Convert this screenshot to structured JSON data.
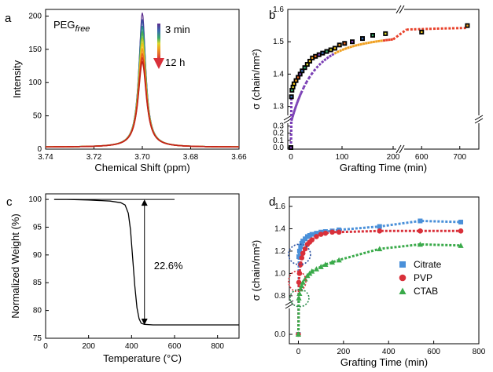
{
  "chart_data": [
    {
      "panel": "a",
      "type": "line",
      "xlabel": "Chemical Shift (ppm)",
      "ylabel": "Intensity",
      "xlim": [
        3.74,
        3.66
      ],
      "ylim": [
        0,
        210
      ],
      "x_ticks": [
        "3.74",
        "3.72",
        "3.70",
        "3.68",
        "3.66"
      ],
      "x_tick_values": [
        3.74,
        3.72,
        3.7,
        3.68,
        3.66
      ],
      "y_ticks": [
        "0",
        "50",
        "100",
        "150",
        "200"
      ],
      "y_tick_values": [
        0,
        50,
        100,
        150,
        200
      ],
      "annotation": {
        "label": "PEG",
        "subscript": "free"
      },
      "arrow_labels": {
        "start": "3 min",
        "end": "12 h"
      },
      "peak_center": 3.7,
      "baseline": 3,
      "series_peaks": [
        205,
        195,
        185,
        175,
        166,
        158,
        150,
        143,
        137,
        131
      ],
      "series_colors": [
        "#5b2d8e",
        "#3a4fa0",
        "#2a8a8a",
        "#4caf50",
        "#b9c92a",
        "#f0c419",
        "#f39a1f",
        "#e8641b",
        "#d93a1a",
        "#c0221a"
      ],
      "grid": false
    },
    {
      "panel": "b",
      "type": "scatter",
      "xlabel": "Grafting Time (min)",
      "ylabel": "σ (chain/nm²)",
      "broken_axes": true,
      "x_ticks_left": [
        "0",
        "100",
        "200"
      ],
      "x_ticks_right": [
        "600",
        "700"
      ],
      "y_ticks_upper": [
        "1.3",
        "1.4",
        "1.5",
        "1.6"
      ],
      "y_ticks_lower": [
        "0.0",
        "0.1",
        "0.2",
        "0.3"
      ],
      "points": [
        {
          "x": 0,
          "y": 0.0
        },
        {
          "x": 1,
          "y": 1.33
        },
        {
          "x": 2,
          "y": 1.35
        },
        {
          "x": 4,
          "y": 1.36
        },
        {
          "x": 6,
          "y": 1.37
        },
        {
          "x": 10,
          "y": 1.38
        },
        {
          "x": 14,
          "y": 1.39
        },
        {
          "x": 18,
          "y": 1.4
        },
        {
          "x": 22,
          "y": 1.41
        },
        {
          "x": 27,
          "y": 1.42
        },
        {
          "x": 32,
          "y": 1.43
        },
        {
          "x": 37,
          "y": 1.44
        },
        {
          "x": 42,
          "y": 1.45
        },
        {
          "x": 48,
          "y": 1.455
        },
        {
          "x": 55,
          "y": 1.46
        },
        {
          "x": 62,
          "y": 1.465
        },
        {
          "x": 70,
          "y": 1.47
        },
        {
          "x": 78,
          "y": 1.475
        },
        {
          "x": 86,
          "y": 1.48
        },
        {
          "x": 95,
          "y": 1.49
        },
        {
          "x": 105,
          "y": 1.495
        },
        {
          "x": 120,
          "y": 1.5
        },
        {
          "x": 140,
          "y": 1.51
        },
        {
          "x": 160,
          "y": 1.52
        },
        {
          "x": 185,
          "y": 1.525
        },
        {
          "x": 600,
          "y": 1.53
        },
        {
          "x": 720,
          "y": 1.55
        }
      ],
      "fit_color_start": "#7a3fb5",
      "fit_color_end": "#e8412a",
      "marker_color": "#000000"
    },
    {
      "panel": "c",
      "type": "line",
      "xlabel": "Temperature (°C)",
      "ylabel": "Normalized Weight (%)",
      "xlim": [
        0,
        900
      ],
      "ylim": [
        75,
        101
      ],
      "x_ticks": [
        "0",
        "200",
        "400",
        "600",
        "800"
      ],
      "x_tick_values": [
        0,
        200,
        400,
        600,
        800
      ],
      "y_ticks": [
        "75",
        "80",
        "85",
        "90",
        "95",
        "100"
      ],
      "y_tick_values": [
        75,
        80,
        85,
        90,
        95,
        100
      ],
      "series": [
        {
          "x": [
            40,
            100,
            200,
            300,
            350,
            370,
            385,
            395,
            405,
            415,
            425,
            435,
            445,
            460,
            500,
            600,
            700,
            800,
            900
          ],
          "y": [
            100,
            100,
            99.9,
            99.7,
            99.4,
            99.0,
            97.5,
            94.5,
            89.5,
            84.5,
            80.5,
            78.5,
            77.7,
            77.5,
            77.4,
            77.4,
            77.4,
            77.4,
            77.4
          ]
        }
      ],
      "annotation": "22.6%",
      "grid": false
    },
    {
      "panel": "d",
      "type": "scatter",
      "xlabel": "Grafting Time (min)",
      "ylabel": "σ (chain/nm²)",
      "xlim": [
        -40,
        800
      ],
      "x_ticks": [
        "0",
        "200",
        "400",
        "600",
        "800"
      ],
      "x_tick_values": [
        0,
        200,
        400,
        600,
        800
      ],
      "y_ticks_upper": [
        "0.8",
        "1.0",
        "1.2",
        "1.4",
        "1.6"
      ],
      "y_ticks_lower": [
        "0.0"
      ],
      "legend_position": "right",
      "series": [
        {
          "name": "Citrate",
          "marker": "square",
          "color": "#4a90d9",
          "x": [
            0,
            2,
            5,
            10,
            15,
            20,
            30,
            40,
            50,
            60,
            80,
            100,
            120,
            150,
            180,
            360,
            540,
            720
          ],
          "y": [
            0.0,
            1.15,
            1.2,
            1.24,
            1.27,
            1.29,
            1.31,
            1.33,
            1.34,
            1.35,
            1.36,
            1.37,
            1.375,
            1.38,
            1.39,
            1.42,
            1.47,
            1.46
          ]
        },
        {
          "name": "PVP",
          "marker": "circle",
          "color": "#d9303a",
          "x": [
            0,
            2,
            5,
            10,
            15,
            20,
            30,
            40,
            50,
            60,
            80,
            100,
            120,
            150,
            180,
            360,
            540,
            720
          ],
          "y": [
            0.0,
            0.92,
            1.0,
            1.08,
            1.14,
            1.18,
            1.22,
            1.26,
            1.28,
            1.3,
            1.33,
            1.35,
            1.36,
            1.37,
            1.37,
            1.38,
            1.38,
            1.38
          ]
        },
        {
          "name": "CTAB",
          "marker": "triangle",
          "color": "#3aaa4a",
          "x": [
            0,
            2,
            5,
            10,
            15,
            20,
            30,
            40,
            50,
            60,
            80,
            100,
            120,
            150,
            180,
            360,
            540,
            720
          ],
          "y": [
            0.0,
            0.78,
            0.82,
            0.86,
            0.89,
            0.92,
            0.95,
            0.98,
            1.0,
            1.02,
            1.04,
            1.06,
            1.08,
            1.1,
            1.12,
            1.22,
            1.26,
            1.25
          ]
        }
      ]
    }
  ],
  "colors": {
    "axis": "#000000",
    "arrow_top": "#7a4fc0",
    "arrow_bottom": "#d9303a"
  }
}
